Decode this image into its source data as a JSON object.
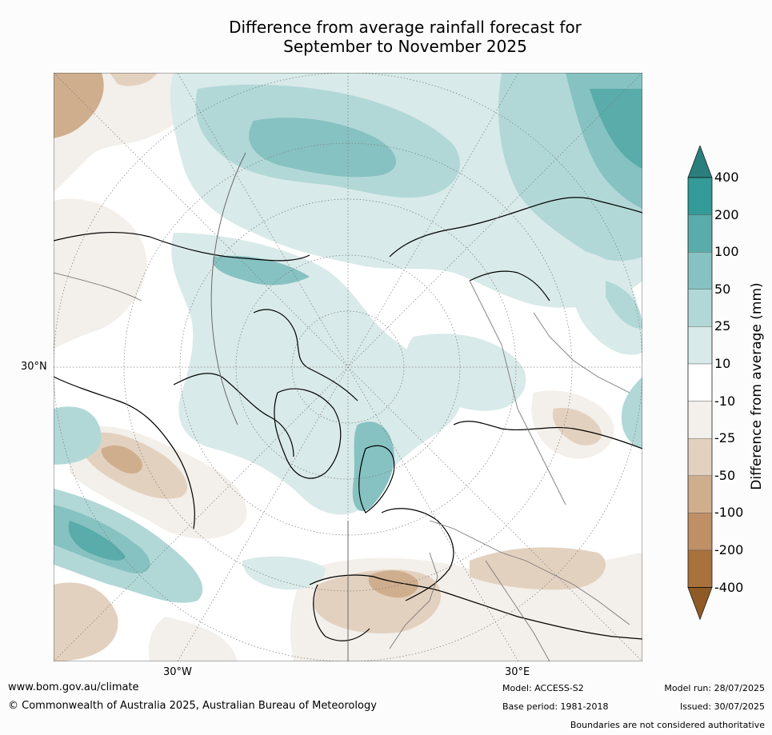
{
  "title": {
    "line1": "Difference from average rainfall forecast for",
    "line2": "September to November 2025"
  },
  "map": {
    "projection": "north-polar-stereographic",
    "lat_label": "30°N",
    "lon_label_left": "30°W",
    "lon_label_right": "30°E"
  },
  "colorbar": {
    "label": "Difference from average (mm)",
    "ticks": [
      "400",
      "200",
      "100",
      "50",
      "25",
      "10",
      "-10",
      "-25",
      "-50",
      "-100",
      "-200",
      "-400"
    ],
    "colors": [
      "#2a7f7d",
      "#339b98",
      "#5aacab",
      "#86c2c1",
      "#b1d8d7",
      "#d8eae9",
      "#ffffff",
      "#f3efea",
      "#e3d1bf",
      "#cfae8e",
      "#bf9065",
      "#a9723c",
      "#8f5a25"
    ]
  },
  "footer": {
    "url": "www.bom.gov.au/climate",
    "copyright": "© Commonwealth of Australia 2025, Australian Bureau of Meteorology",
    "model": "Model: ACCESS-S2",
    "base_period": "Base period: 1981-2018",
    "model_run": "Model run: 28/07/2025",
    "issued": "Issued: 30/07/2025",
    "boundaries": "Boundaries are not considered authoritative"
  }
}
